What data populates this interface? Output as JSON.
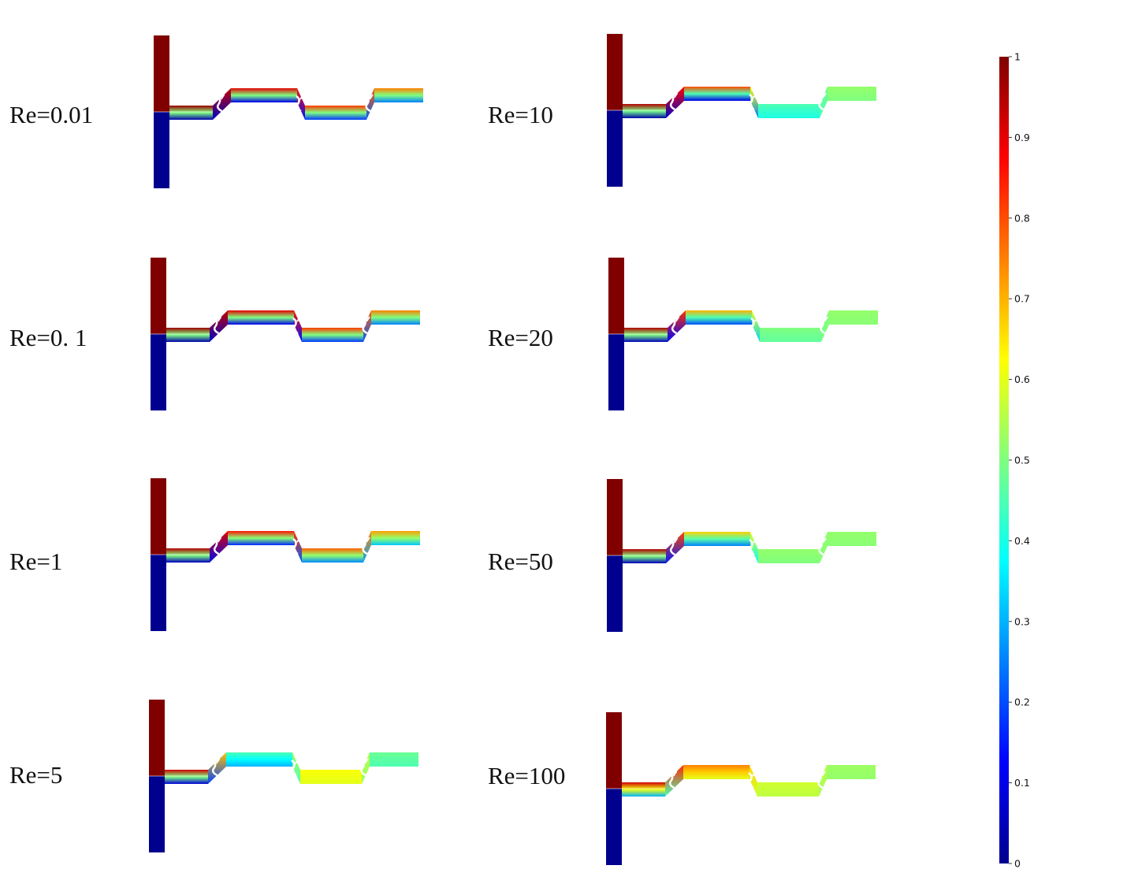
{
  "panels": [
    {
      "label": "Re=0.01",
      "upper": [
        0.97,
        0.9,
        0.82,
        0.75
      ],
      "lower": [
        0.03,
        0.1,
        0.18,
        0.25
      ]
    },
    {
      "label": "Re=0. 1",
      "upper": [
        0.97,
        0.9,
        0.82,
        0.75
      ],
      "lower": [
        0.03,
        0.1,
        0.18,
        0.25
      ]
    },
    {
      "label": "Re=1",
      "upper": [
        0.95,
        0.86,
        0.78,
        0.72
      ],
      "lower": [
        0.05,
        0.16,
        0.26,
        0.32
      ]
    },
    {
      "label": "Re=5",
      "upper": [
        0.92,
        0.45,
        0.62,
        0.48
      ],
      "lower": [
        0.08,
        0.3,
        0.6,
        0.45
      ]
    },
    {
      "label": "Re=10",
      "upper": [
        0.95,
        0.8,
        0.45,
        0.52
      ],
      "lower": [
        0.03,
        0.1,
        0.4,
        0.5
      ]
    },
    {
      "label": "Re=20",
      "upper": [
        0.95,
        0.7,
        0.5,
        0.52
      ],
      "lower": [
        0.05,
        0.2,
        0.47,
        0.51
      ]
    },
    {
      "label": "Re=50",
      "upper": [
        0.95,
        0.67,
        0.52,
        0.52
      ],
      "lower": [
        0.05,
        0.25,
        0.5,
        0.51
      ]
    },
    {
      "label": "Re=100",
      "upper": [
        0.92,
        0.75,
        0.58,
        0.53
      ],
      "lower": [
        0.3,
        0.6,
        0.56,
        0.52
      ]
    }
  ],
  "colorbar": {
    "min": 0,
    "max": 1,
    "ticks": [
      "0",
      "0.1",
      "0.2",
      "0.3",
      "0.4",
      "0.5",
      "0.6",
      "0.7",
      "0.8",
      "0.9",
      "1"
    ],
    "colormap": "jet",
    "colors": [
      "#00008f",
      "#0000ff",
      "#00ffff",
      "#ffff00",
      "#ff0000",
      "#800000"
    ]
  }
}
